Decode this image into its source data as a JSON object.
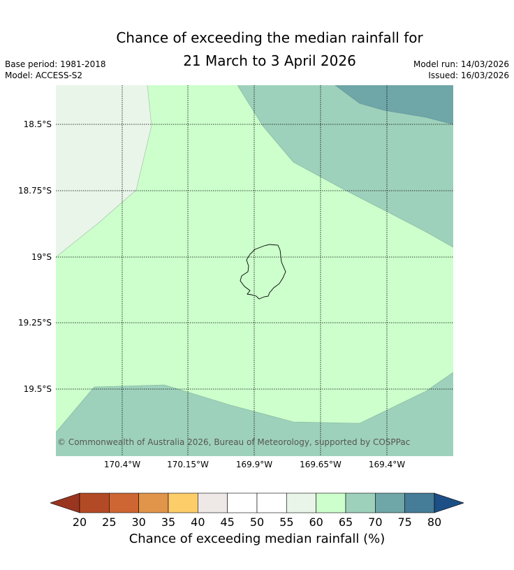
{
  "title_line1": "Chance of exceeding the median rainfall for",
  "title_line2": "21 March to 3 April 2026",
  "base_period": "Base period: 1981-2018",
  "model": "Model: ACCESS-S2",
  "model_run": "Model run: 14/03/2026",
  "issued": "Issued: 16/03/2026",
  "lat_labels": [
    "18.5°S",
    "18.75°S",
    "19°S",
    "19.25°S",
    "19.5°S"
  ],
  "lon_labels": [
    "170.4°W",
    "170.15°W",
    "169.9°W",
    "169.65°W",
    "169.4°W"
  ],
  "copyright": "© Commonwealth of Australia 2026, Bureau of Meteorology, supported by COSPPac",
  "colorbar": {
    "ticks": [
      "20",
      "25",
      "30",
      "35",
      "40",
      "45",
      "50",
      "55",
      "60",
      "65",
      "70",
      "75",
      "80"
    ],
    "label": "Chance of exceeding median rainfall (%)",
    "colors": [
      "#b34a26",
      "#cd6633",
      "#e0954a",
      "#fdcd6a",
      "#eee9e6",
      "#ffffff",
      "#ffffff",
      "#e9f5e9",
      "#ccffcc",
      "#9ed1bb",
      "#6fa6a8",
      "#457c97"
    ],
    "under_color": "#9a3520",
    "over_color": "#1c4f85"
  },
  "map_fill": {
    "band_55_60": "#e9f5e9",
    "band_60_65": "#ccffcc",
    "band_65_70": "#9ed1bb",
    "band_70_75": "#6fa6a8"
  }
}
